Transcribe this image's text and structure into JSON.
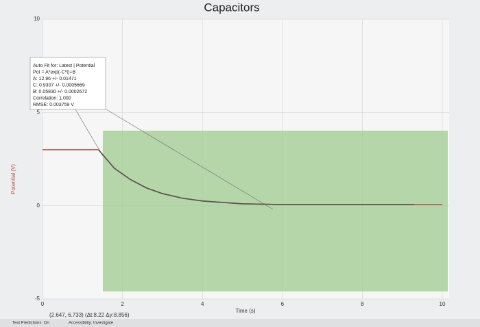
{
  "chart_data": {
    "type": "line",
    "title": "Capacitors",
    "xlabel": "Time (s)",
    "ylabel": "Potential (V)",
    "xlim": [
      0,
      10
    ],
    "ylim": [
      -5,
      10
    ],
    "xticks": [
      0,
      2,
      4,
      6,
      8,
      10
    ],
    "yticks": [
      -5,
      0,
      5,
      10
    ],
    "grid": true,
    "series": [
      {
        "color": "#c0504d",
        "x": [
          0,
          1.4,
          1.8,
          2.2,
          2.6,
          3.0,
          3.5,
          4.0,
          5.0,
          6.0,
          8.0,
          10.0
        ],
        "values": [
          3.0,
          3.0,
          2.0,
          1.4,
          0.95,
          0.65,
          0.4,
          0.25,
          0.1,
          0.06,
          0.06,
          0.06
        ]
      },
      {
        "color": "#555555",
        "x": [
          1.4,
          1.8,
          2.2,
          2.6,
          3.0,
          3.5,
          4.0,
          5.0,
          6.0,
          8.0,
          9.3
        ],
        "values": [
          3.0,
          2.0,
          1.4,
          0.95,
          0.65,
          0.4,
          0.25,
          0.1,
          0.06,
          0.06,
          0.06
        ]
      }
    ],
    "annotation": [
      "Auto Fit for: Latest | Potential",
      "Pot = A*exp(-C*t)+B",
      "A: 12.96 +/- 0.01471",
      "C: 0.9307 +/- 0.0005669",
      "B: 0.05830 +/- 0.0002672",
      "Correlation: 1.000",
      "RMSE: 0.003759 V"
    ],
    "readout": "(2.647, 6.733) (Δt:8.22 Δy:8.856)"
  },
  "status_bar": {
    "left": "Text Predictions: On",
    "middle": "Accessibility: Investigate"
  }
}
